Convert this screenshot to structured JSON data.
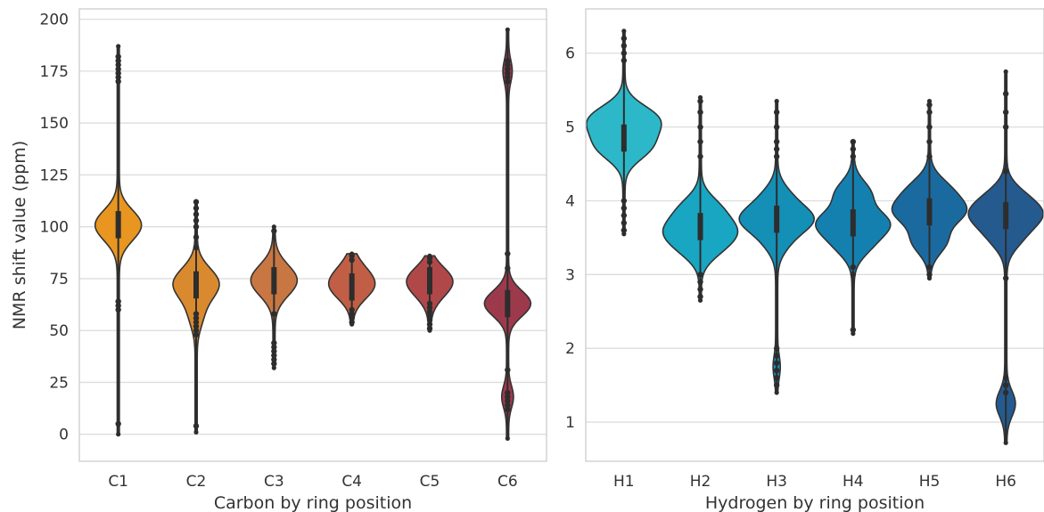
{
  "chart_data": [
    {
      "type": "violin",
      "title": "",
      "xlabel": "Carbon by ring position",
      "ylabel": "NMR shift value (ppm)",
      "categories": [
        "C1",
        "C2",
        "C3",
        "C4",
        "C5",
        "C6"
      ],
      "ylim": [
        -13,
        205
      ],
      "yticks": [
        0,
        25,
        50,
        75,
        100,
        125,
        150,
        175,
        200
      ],
      "grid": "horizontal",
      "colors": [
        "#e8961f",
        "#d98a2e",
        "#c97742",
        "#c05f45",
        "#b0484a",
        "#9c3a4c"
      ],
      "series": [
        {
          "category": "C1",
          "min": 0,
          "max": 187,
          "median": 101,
          "peaks": [
            [
              101,
              1.0
            ],
            [
              95,
              0.45
            ],
            [
              106,
              0.4
            ]
          ],
          "outliers": [
            5,
            60,
            62,
            64,
            170,
            172,
            174,
            176,
            178,
            180,
            182
          ]
        },
        {
          "category": "C2",
          "min": 1,
          "max": 112,
          "median": 72,
          "peaks": [
            [
              72,
              1.0
            ],
            [
              78,
              0.45
            ],
            [
              65,
              0.35
            ],
            [
              56,
              0.3
            ]
          ],
          "outliers": [
            4,
            48,
            50,
            52,
            54,
            56,
            58,
            90,
            95,
            100,
            103,
            106,
            109,
            112
          ]
        },
        {
          "category": "C3",
          "min": 32,
          "max": 100,
          "median": 74,
          "peaks": [
            [
              74,
              1.0
            ],
            [
              80,
              0.4
            ],
            [
              68,
              0.35
            ]
          ],
          "outliers": [
            34,
            36,
            38,
            40,
            42,
            44,
            58,
            98
          ]
        },
        {
          "category": "C4",
          "min": 53,
          "max": 87,
          "median": 71,
          "peaks": [
            [
              70,
              1.0
            ],
            [
              79,
              0.6
            ],
            [
              73,
              0.45
            ]
          ],
          "outliers": [
            54,
            56,
            58,
            60,
            84,
            86
          ]
        },
        {
          "category": "C5",
          "min": 50,
          "max": 86,
          "median": 74,
          "peaks": [
            [
              76,
              1.0
            ],
            [
              72,
              0.7
            ],
            [
              67,
              0.35
            ]
          ],
          "outliers": [
            51,
            53,
            55,
            57,
            59,
            61,
            63,
            83,
            85
          ]
        },
        {
          "category": "C6",
          "min": -2,
          "max": 195,
          "median": 63,
          "peaks": [
            [
              63,
              0.55
            ],
            [
              18,
              0.12
            ],
            [
              175,
              0.09
            ]
          ],
          "outliers": [
            12,
            14,
            16,
            18,
            20,
            31,
            80,
            87,
            170,
            172,
            174,
            176,
            178,
            180
          ]
        }
      ]
    },
    {
      "type": "violin",
      "title": "",
      "xlabel": "Hydrogen by ring position",
      "ylabel": "",
      "categories": [
        "H1",
        "H2",
        "H3",
        "H4",
        "H5",
        "H6"
      ],
      "ylim": [
        0.47,
        6.6
      ],
      "yticks": [
        1,
        2,
        3,
        4,
        5,
        6
      ],
      "grid": "horizontal",
      "colors": [
        "#2cb8c8",
        "#18a6c2",
        "#148fb6",
        "#1480b0",
        "#1a6aa0",
        "#245a8e"
      ],
      "series": [
        {
          "category": "H1",
          "min": 3.55,
          "max": 6.3,
          "median": 4.85,
          "peaks": [
            [
              4.7,
              0.85
            ],
            [
              5.15,
              1.0
            ],
            [
              4.95,
              0.65
            ]
          ],
          "outliers": [
            3.6,
            3.7,
            3.8,
            3.9,
            4.0,
            5.9,
            6.0,
            6.1,
            6.2
          ]
        },
        {
          "category": "H2",
          "min": 2.65,
          "max": 5.4,
          "median": 3.65,
          "peaks": [
            [
              3.6,
              1.0
            ],
            [
              3.9,
              0.6
            ],
            [
              3.35,
              0.55
            ]
          ],
          "outliers": [
            2.7,
            2.8,
            2.9,
            3.0,
            4.6,
            4.8,
            5.0,
            5.2,
            5.35
          ]
        },
        {
          "category": "H3",
          "min": 1.4,
          "max": 5.35,
          "median": 3.75,
          "peaks": [
            [
              3.75,
              1.0
            ],
            [
              4.05,
              0.35
            ],
            [
              3.45,
              0.3
            ],
            [
              1.75,
              0.08
            ]
          ],
          "outliers": [
            1.5,
            1.6,
            1.7,
            1.8,
            1.9,
            2.0,
            4.6,
            4.7,
            4.8,
            5.0,
            5.2
          ]
        },
        {
          "category": "H4",
          "min": 2.2,
          "max": 4.8,
          "median": 3.7,
          "peaks": [
            [
              3.7,
              1.0
            ],
            [
              4.1,
              0.5
            ],
            [
              3.4,
              0.45
            ]
          ],
          "outliers": [
            2.25,
            3.0,
            3.1,
            4.6,
            4.7,
            4.8
          ]
        },
        {
          "category": "H5",
          "min": 2.95,
          "max": 5.35,
          "median": 3.85,
          "peaks": [
            [
              3.85,
              1.0
            ],
            [
              4.15,
              0.55
            ],
            [
              3.45,
              0.5
            ]
          ],
          "outliers": [
            3.0,
            3.1,
            4.6,
            4.8,
            5.0,
            5.2,
            5.3
          ]
        },
        {
          "category": "H6",
          "min": 0.72,
          "max": 5.75,
          "median": 3.8,
          "peaks": [
            [
              3.8,
              1.0
            ],
            [
              4.05,
              0.5
            ],
            [
              3.5,
              0.45
            ],
            [
              1.25,
              0.3
            ]
          ],
          "outliers": [
            1.4,
            1.5,
            1.6,
            2.95,
            4.4,
            5.0,
            5.2,
            5.45
          ]
        }
      ]
    }
  ]
}
